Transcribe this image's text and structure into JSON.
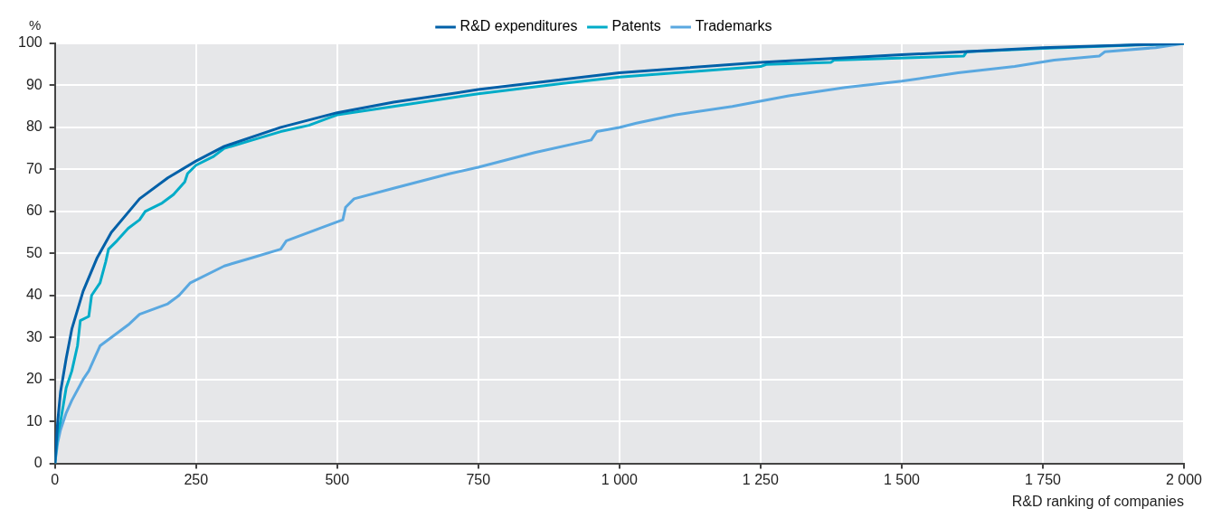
{
  "chart_data": {
    "type": "line",
    "xlabel": "R&D ranking of companies",
    "ylabel": "%",
    "xlim": [
      0,
      2000
    ],
    "ylim": [
      0,
      100
    ],
    "xticks": [
      0,
      250,
      500,
      750,
      {
        "value": 1000,
        "label": "1 000"
      },
      {
        "value": 1250,
        "label": "1 250"
      },
      {
        "value": 1500,
        "label": "1 500"
      },
      {
        "value": 1750,
        "label": "1 750"
      },
      {
        "value": 2000,
        "label": "2 000"
      }
    ],
    "yticks": [
      0,
      10,
      20,
      30,
      40,
      50,
      60,
      70,
      80,
      90,
      100
    ],
    "grid": true,
    "legend": "top",
    "marker": "none",
    "line_style": "solid",
    "series": [
      {
        "name": "R&D expenditures",
        "color": "#0060a8",
        "x": [
          0,
          5,
          10,
          20,
          30,
          50,
          75,
          100,
          150,
          200,
          250,
          300,
          400,
          500,
          600,
          750,
          1000,
          1250,
          1500,
          1610,
          1750,
          2000
        ],
        "values": [
          0,
          10,
          17,
          25,
          32,
          41,
          49,
          55,
          63,
          68,
          72,
          75.5,
          80,
          83.5,
          86,
          89,
          93,
          95.5,
          97.3,
          98,
          99,
          100
        ]
      },
      {
        "name": "Patents",
        "color": "#00acc8",
        "x": [
          0,
          5,
          10,
          20,
          30,
          40,
          45,
          60,
          65,
          80,
          90,
          95,
          110,
          130,
          150,
          160,
          190,
          210,
          230,
          235,
          250,
          280,
          300,
          350,
          400,
          450,
          480,
          500,
          600,
          750,
          900,
          1000,
          1100,
          1250,
          1260,
          1375,
          1380,
          1610,
          1615,
          1750,
          2000
        ],
        "values": [
          0,
          7,
          10,
          18,
          22,
          28,
          34,
          35,
          40,
          43,
          48,
          51,
          53,
          56,
          58,
          60,
          62,
          64,
          67,
          69,
          71,
          73,
          75,
          77,
          79,
          80.5,
          82,
          83,
          85,
          88,
          90.5,
          92,
          93,
          94.5,
          95,
          95.5,
          96,
          97,
          98,
          98.8,
          100
        ]
      },
      {
        "name": "Trademarks",
        "color": "#5aa8e0",
        "x": [
          0,
          5,
          10,
          20,
          30,
          50,
          60,
          70,
          80,
          100,
          130,
          150,
          200,
          220,
          240,
          300,
          350,
          400,
          410,
          470,
          510,
          515,
          530,
          600,
          700,
          750,
          850,
          950,
          960,
          1000,
          1030,
          1100,
          1200,
          1300,
          1400,
          1500,
          1600,
          1700,
          1770,
          1850,
          1860,
          1950,
          2000
        ],
        "values": [
          0,
          5,
          8,
          12,
          15,
          20,
          22,
          25,
          28,
          30,
          33,
          35.5,
          38,
          40,
          43,
          47,
          49,
          51,
          53,
          56,
          58,
          61,
          63,
          65.5,
          69,
          70.5,
          74,
          77,
          79,
          80,
          81,
          83,
          85,
          87.5,
          89.5,
          91,
          93,
          94.5,
          96,
          97,
          98,
          99,
          100
        ]
      }
    ]
  }
}
